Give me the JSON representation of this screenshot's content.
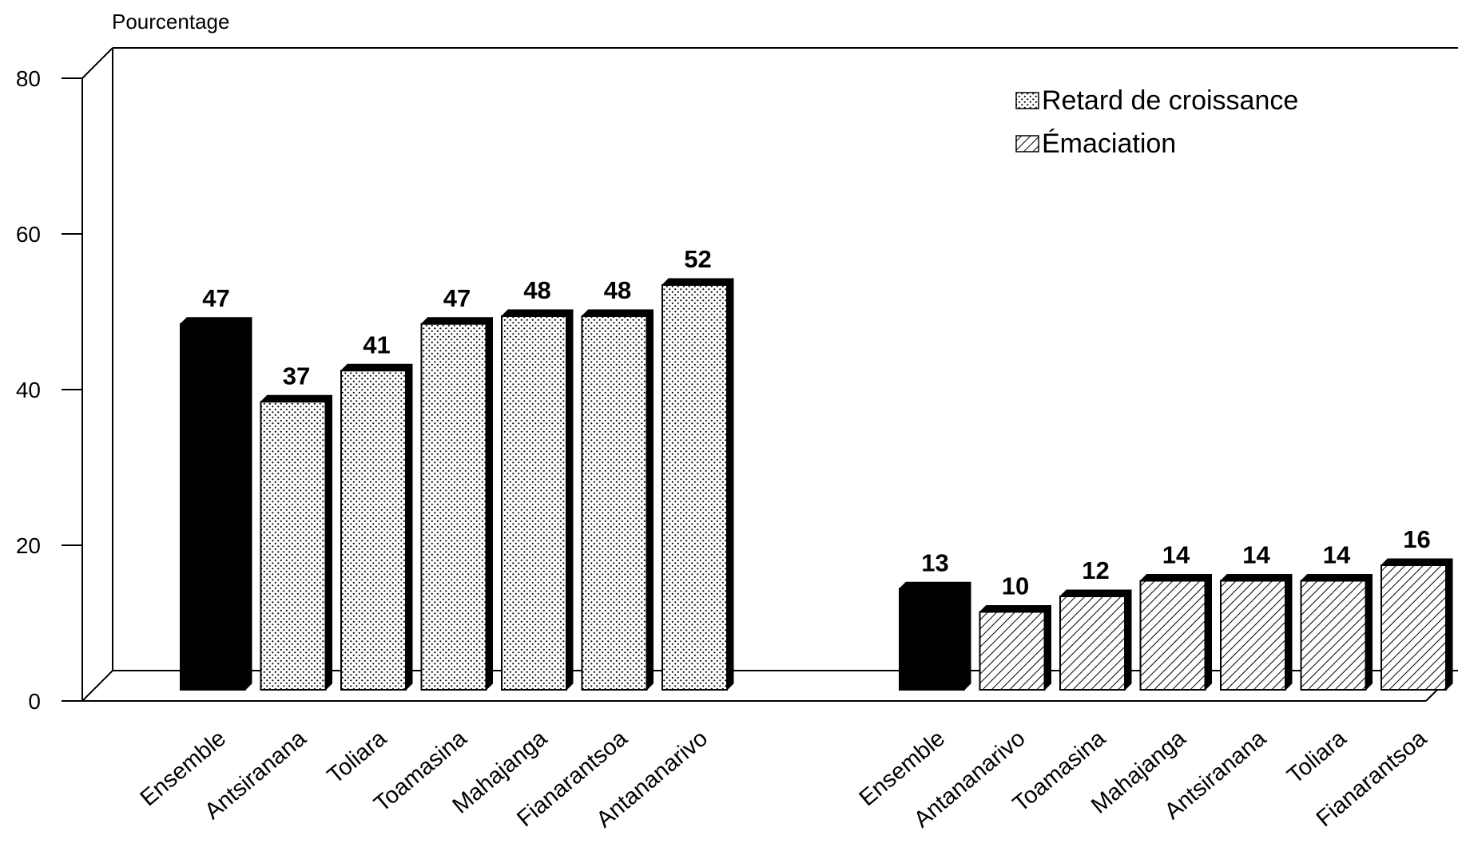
{
  "chart_data": {
    "type": "bar",
    "ylabel": "Pourcentage",
    "ylim": [
      0,
      80
    ],
    "yticks": [
      0,
      20,
      40,
      60,
      80
    ],
    "style": "3d",
    "grid": false,
    "legend_position": "top-right",
    "colors": {
      "ensemble": "#000000",
      "bar_fill": "#ffffff",
      "outline": "#000000"
    },
    "series": [
      {
        "name": "Retard de croissance",
        "pattern": "dots",
        "categories": [
          "Ensemble",
          "Antsiranana",
          "Toliara",
          "Toamasina",
          "Mahajanga",
          "Fianarantsoa",
          "Antananarivo"
        ],
        "values": [
          47,
          37,
          41,
          47,
          48,
          48,
          52
        ]
      },
      {
        "name": "Émaciation",
        "pattern": "diagonal-hatch",
        "categories": [
          "Ensemble",
          "Antananarivo",
          "Toamasina",
          "Mahajanga",
          "Antsiranana",
          "Toliara",
          "Fianarantsoa"
        ],
        "values": [
          13,
          10,
          12,
          14,
          14,
          14,
          16
        ]
      }
    ],
    "legend": [
      "Retard de croissance",
      "Émaciation"
    ]
  }
}
